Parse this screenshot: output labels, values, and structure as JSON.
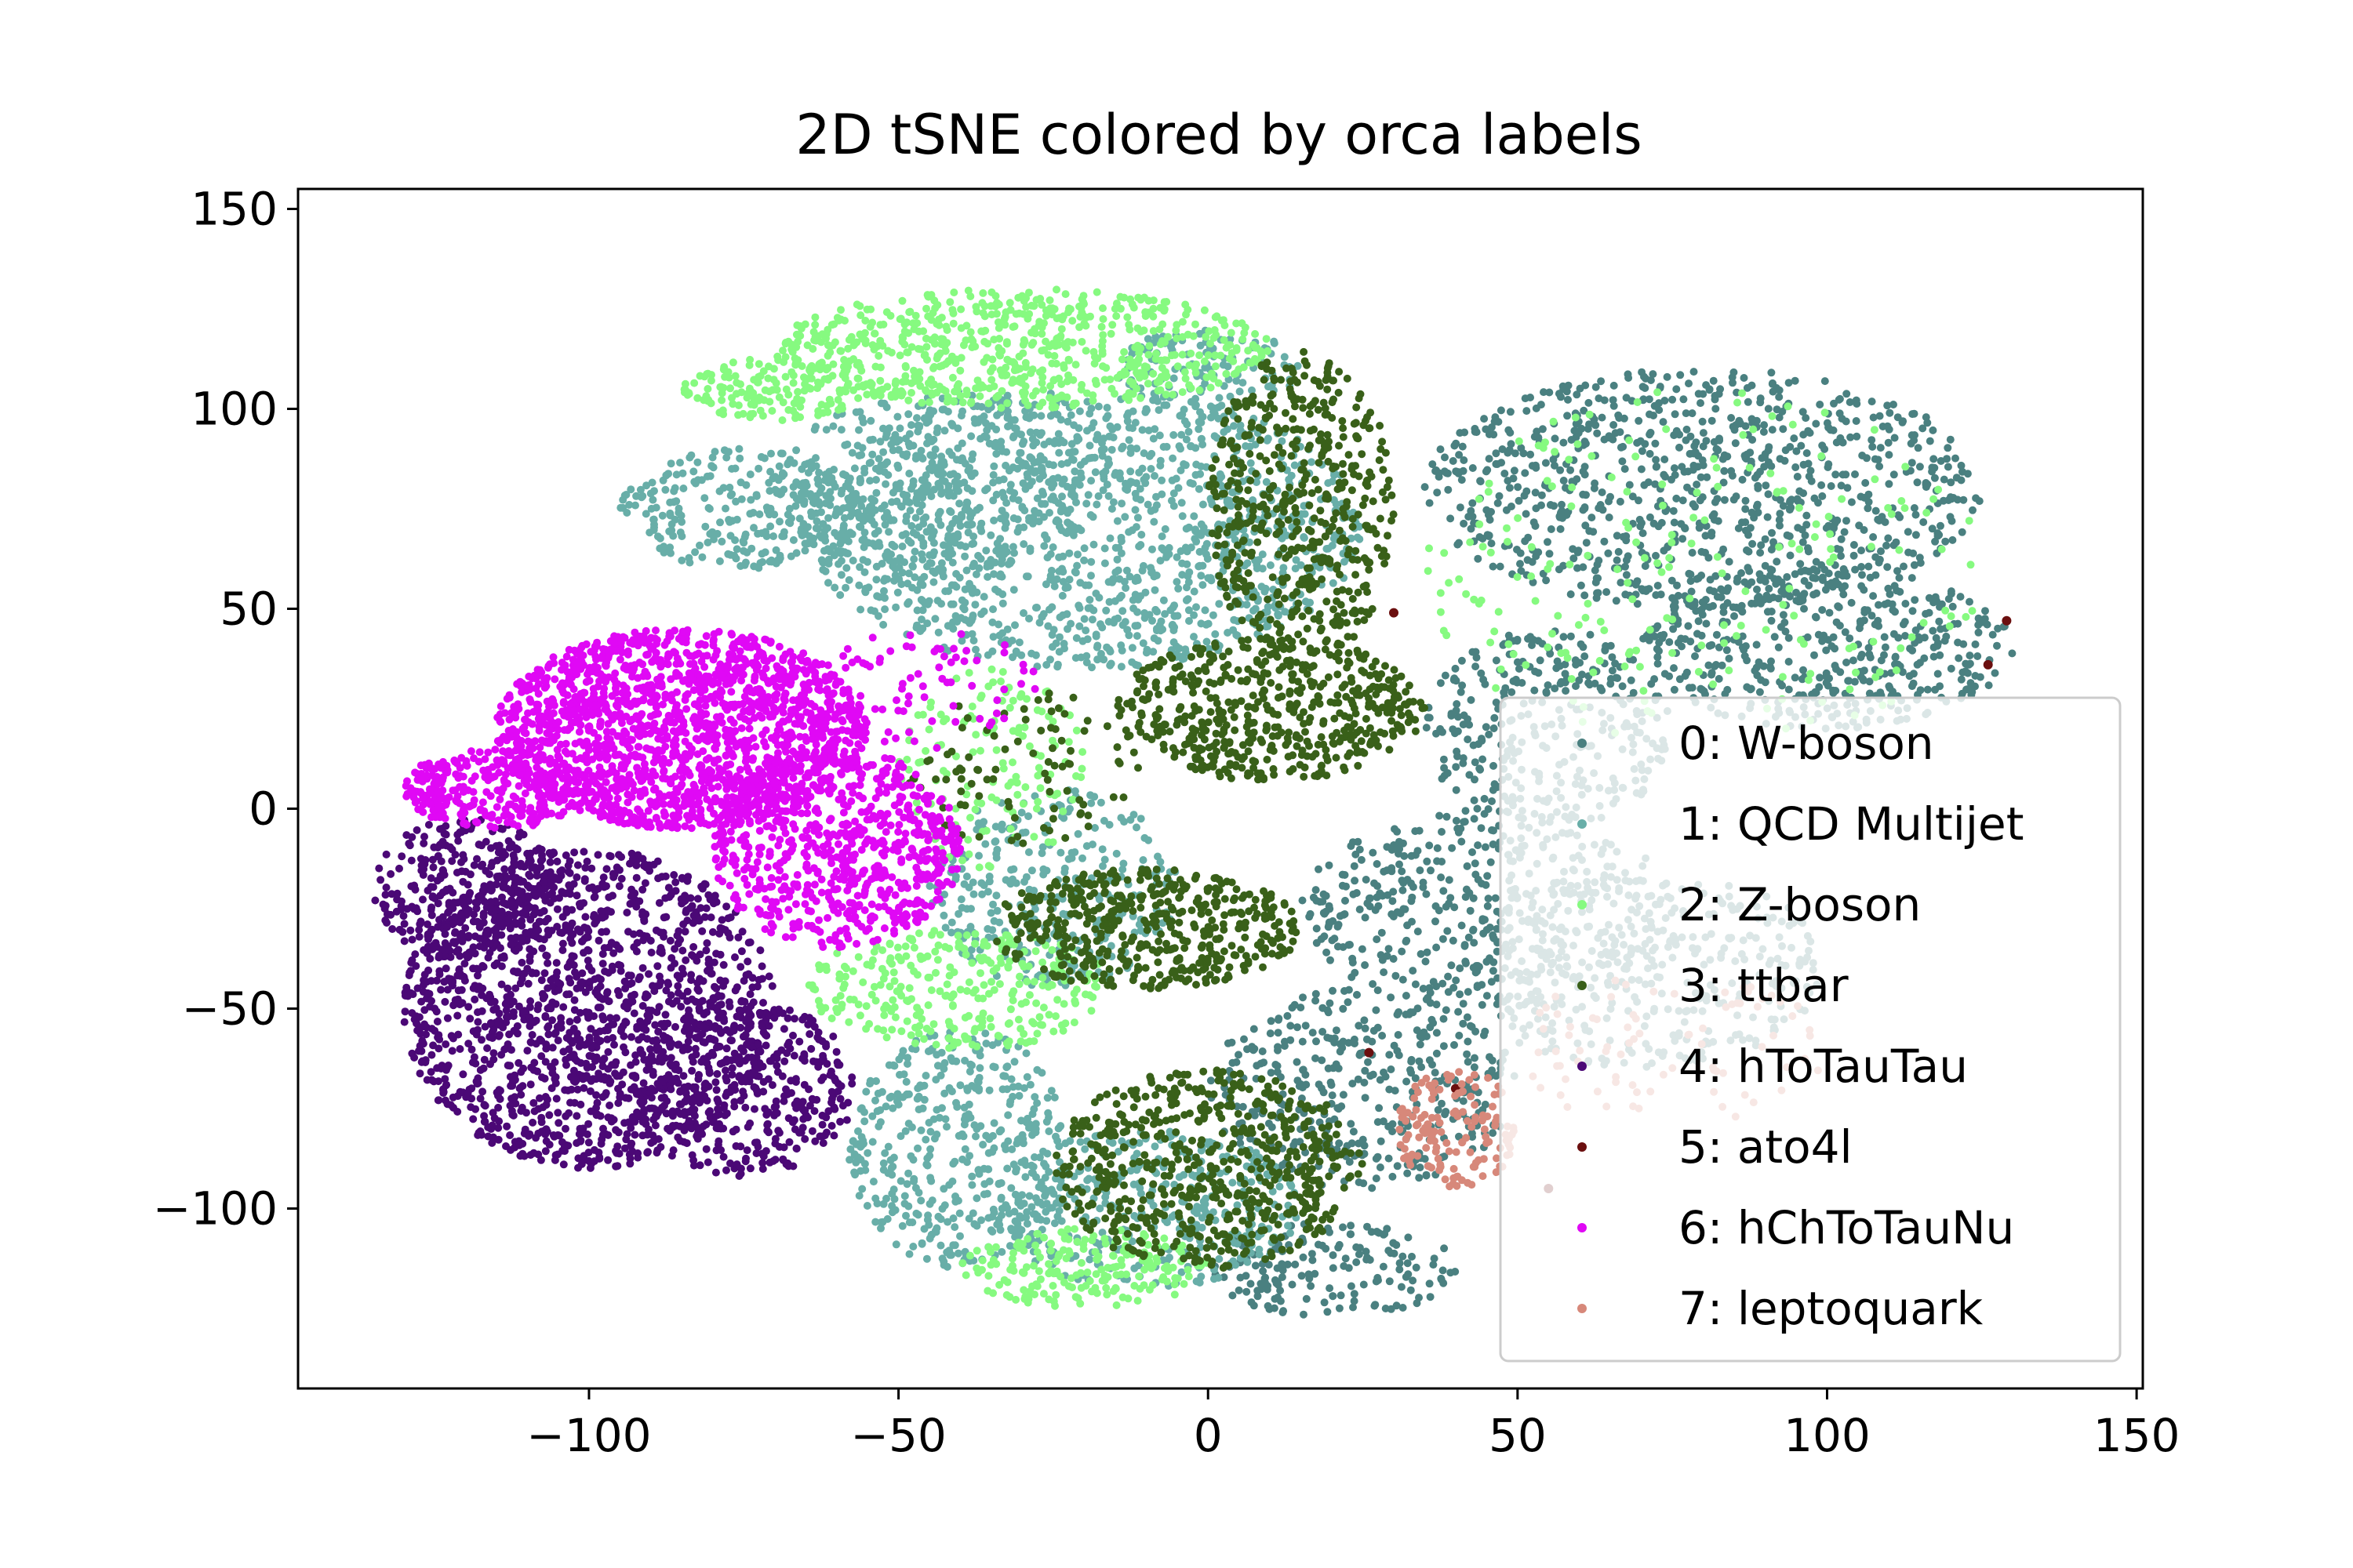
{
  "chart_data": {
    "type": "scatter",
    "title": "2D tSNE colored by orca labels",
    "xlabel": "",
    "ylabel": "",
    "xlim": [
      -147,
      151
    ],
    "ylim": [
      -145,
      155
    ],
    "xticks": [
      -100,
      -50,
      0,
      50,
      100,
      150
    ],
    "yticks": [
      -100,
      -50,
      0,
      50,
      100,
      150
    ],
    "xtick_labels": [
      "−100",
      "−50",
      "0",
      "50",
      "100",
      "150"
    ],
    "ytick_labels": [
      "−100",
      "−50",
      "0",
      "50",
      "100",
      "150"
    ],
    "grid": false,
    "legend_position": "lower-right",
    "series": [
      {
        "name": "0: W-boson",
        "color": "#4a8080",
        "regions": [
          {
            "cx": 80,
            "cy": 80,
            "rx": 45,
            "ry": 30,
            "n": 900
          },
          {
            "cx": 100,
            "cy": 40,
            "rx": 30,
            "ry": 20,
            "n": 450
          },
          {
            "cx": 55,
            "cy": 20,
            "rx": 20,
            "ry": 25,
            "n": 320
          },
          {
            "cx": 45,
            "cy": -25,
            "rx": 30,
            "ry": 25,
            "n": 420
          },
          {
            "cx": 25,
            "cy": -70,
            "rx": 25,
            "ry": 25,
            "n": 380
          },
          {
            "cx": 20,
            "cy": -115,
            "rx": 20,
            "ry": 12,
            "n": 160
          },
          {
            "cx": 70,
            "cy": -40,
            "rx": 30,
            "ry": 25,
            "n": 360
          }
        ]
      },
      {
        "name": "1: QCD Multijet",
        "color": "#68aea8",
        "regions": [
          {
            "cx": -20,
            "cy": 70,
            "rx": 45,
            "ry": 35,
            "n": 1300
          },
          {
            "cx": -45,
            "cy": 80,
            "rx": 25,
            "ry": 25,
            "n": 350
          },
          {
            "cx": -75,
            "cy": 75,
            "rx": 20,
            "ry": 15,
            "n": 260
          },
          {
            "cx": -40,
            "cy": -85,
            "rx": 18,
            "ry": 30,
            "n": 420
          },
          {
            "cx": -10,
            "cy": -100,
            "rx": 25,
            "ry": 20,
            "n": 380
          },
          {
            "cx": -25,
            "cy": -20,
            "rx": 20,
            "ry": 25,
            "n": 300
          },
          {
            "cx": 0,
            "cy": 110,
            "rx": 15,
            "ry": 10,
            "n": 120
          }
        ]
      },
      {
        "name": "2: Z-boson",
        "color": "#86fa80",
        "regions": [
          {
            "cx": -30,
            "cy": 115,
            "rx": 40,
            "ry": 15,
            "n": 700
          },
          {
            "cx": -70,
            "cy": 105,
            "rx": 15,
            "ry": 8,
            "n": 160
          },
          {
            "cx": -40,
            "cy": -45,
            "rx": 25,
            "ry": 15,
            "n": 300
          },
          {
            "cx": -20,
            "cy": -115,
            "rx": 20,
            "ry": 10,
            "n": 200
          },
          {
            "cx": 80,
            "cy": 60,
            "rx": 45,
            "ry": 45,
            "n": 200
          },
          {
            "cx": -35,
            "cy": 10,
            "rx": 15,
            "ry": 25,
            "n": 140
          }
        ]
      },
      {
        "name": "3: ttbar",
        "color": "#396019",
        "regions": [
          {
            "cx": 15,
            "cy": 75,
            "rx": 15,
            "ry": 40,
            "n": 520
          },
          {
            "cx": 10,
            "cy": 25,
            "rx": 25,
            "ry": 18,
            "n": 520
          },
          {
            "cx": -10,
            "cy": -30,
            "rx": 25,
            "ry": 15,
            "n": 480
          },
          {
            "cx": 0,
            "cy": -90,
            "rx": 25,
            "ry": 25,
            "n": 600
          },
          {
            "cx": -30,
            "cy": 10,
            "rx": 20,
            "ry": 20,
            "n": 90
          }
        ]
      },
      {
        "name": "4: hToTauTau",
        "color": "#4b0876",
        "regions": [
          {
            "cx": -100,
            "cy": -50,
            "rx": 30,
            "ry": 40,
            "n": 1500
          },
          {
            "cx": -120,
            "cy": -20,
            "rx": 15,
            "ry": 18,
            "n": 300
          },
          {
            "cx": -75,
            "cy": -70,
            "rx": 18,
            "ry": 22,
            "n": 400
          }
        ]
      },
      {
        "name": "5: ato4l",
        "color": "#6b0f0f",
        "points": [
          [
            30,
            49
          ],
          [
            129,
            47
          ],
          [
            126,
            36
          ],
          [
            26,
            -61
          ],
          [
            40,
            -70
          ],
          [
            55,
            -95
          ]
        ]
      },
      {
        "name": "6: hChToTauNu",
        "color": "#e008f5",
        "regions": [
          {
            "cx": -85,
            "cy": 20,
            "rx": 30,
            "ry": 25,
            "n": 1700
          },
          {
            "cx": -60,
            "cy": -10,
            "rx": 20,
            "ry": 25,
            "n": 700
          },
          {
            "cx": -115,
            "cy": 5,
            "rx": 15,
            "ry": 10,
            "n": 300
          },
          {
            "cx": -45,
            "cy": 30,
            "rx": 18,
            "ry": 15,
            "n": 80
          }
        ]
      },
      {
        "name": "7: leptoquark",
        "color": "#d7887a",
        "regions": [
          {
            "cx": 40,
            "cy": -80,
            "rx": 10,
            "ry": 15,
            "n": 140
          },
          {
            "cx": 75,
            "cy": -60,
            "rx": 25,
            "ry": 20,
            "n": 80
          }
        ]
      }
    ]
  }
}
